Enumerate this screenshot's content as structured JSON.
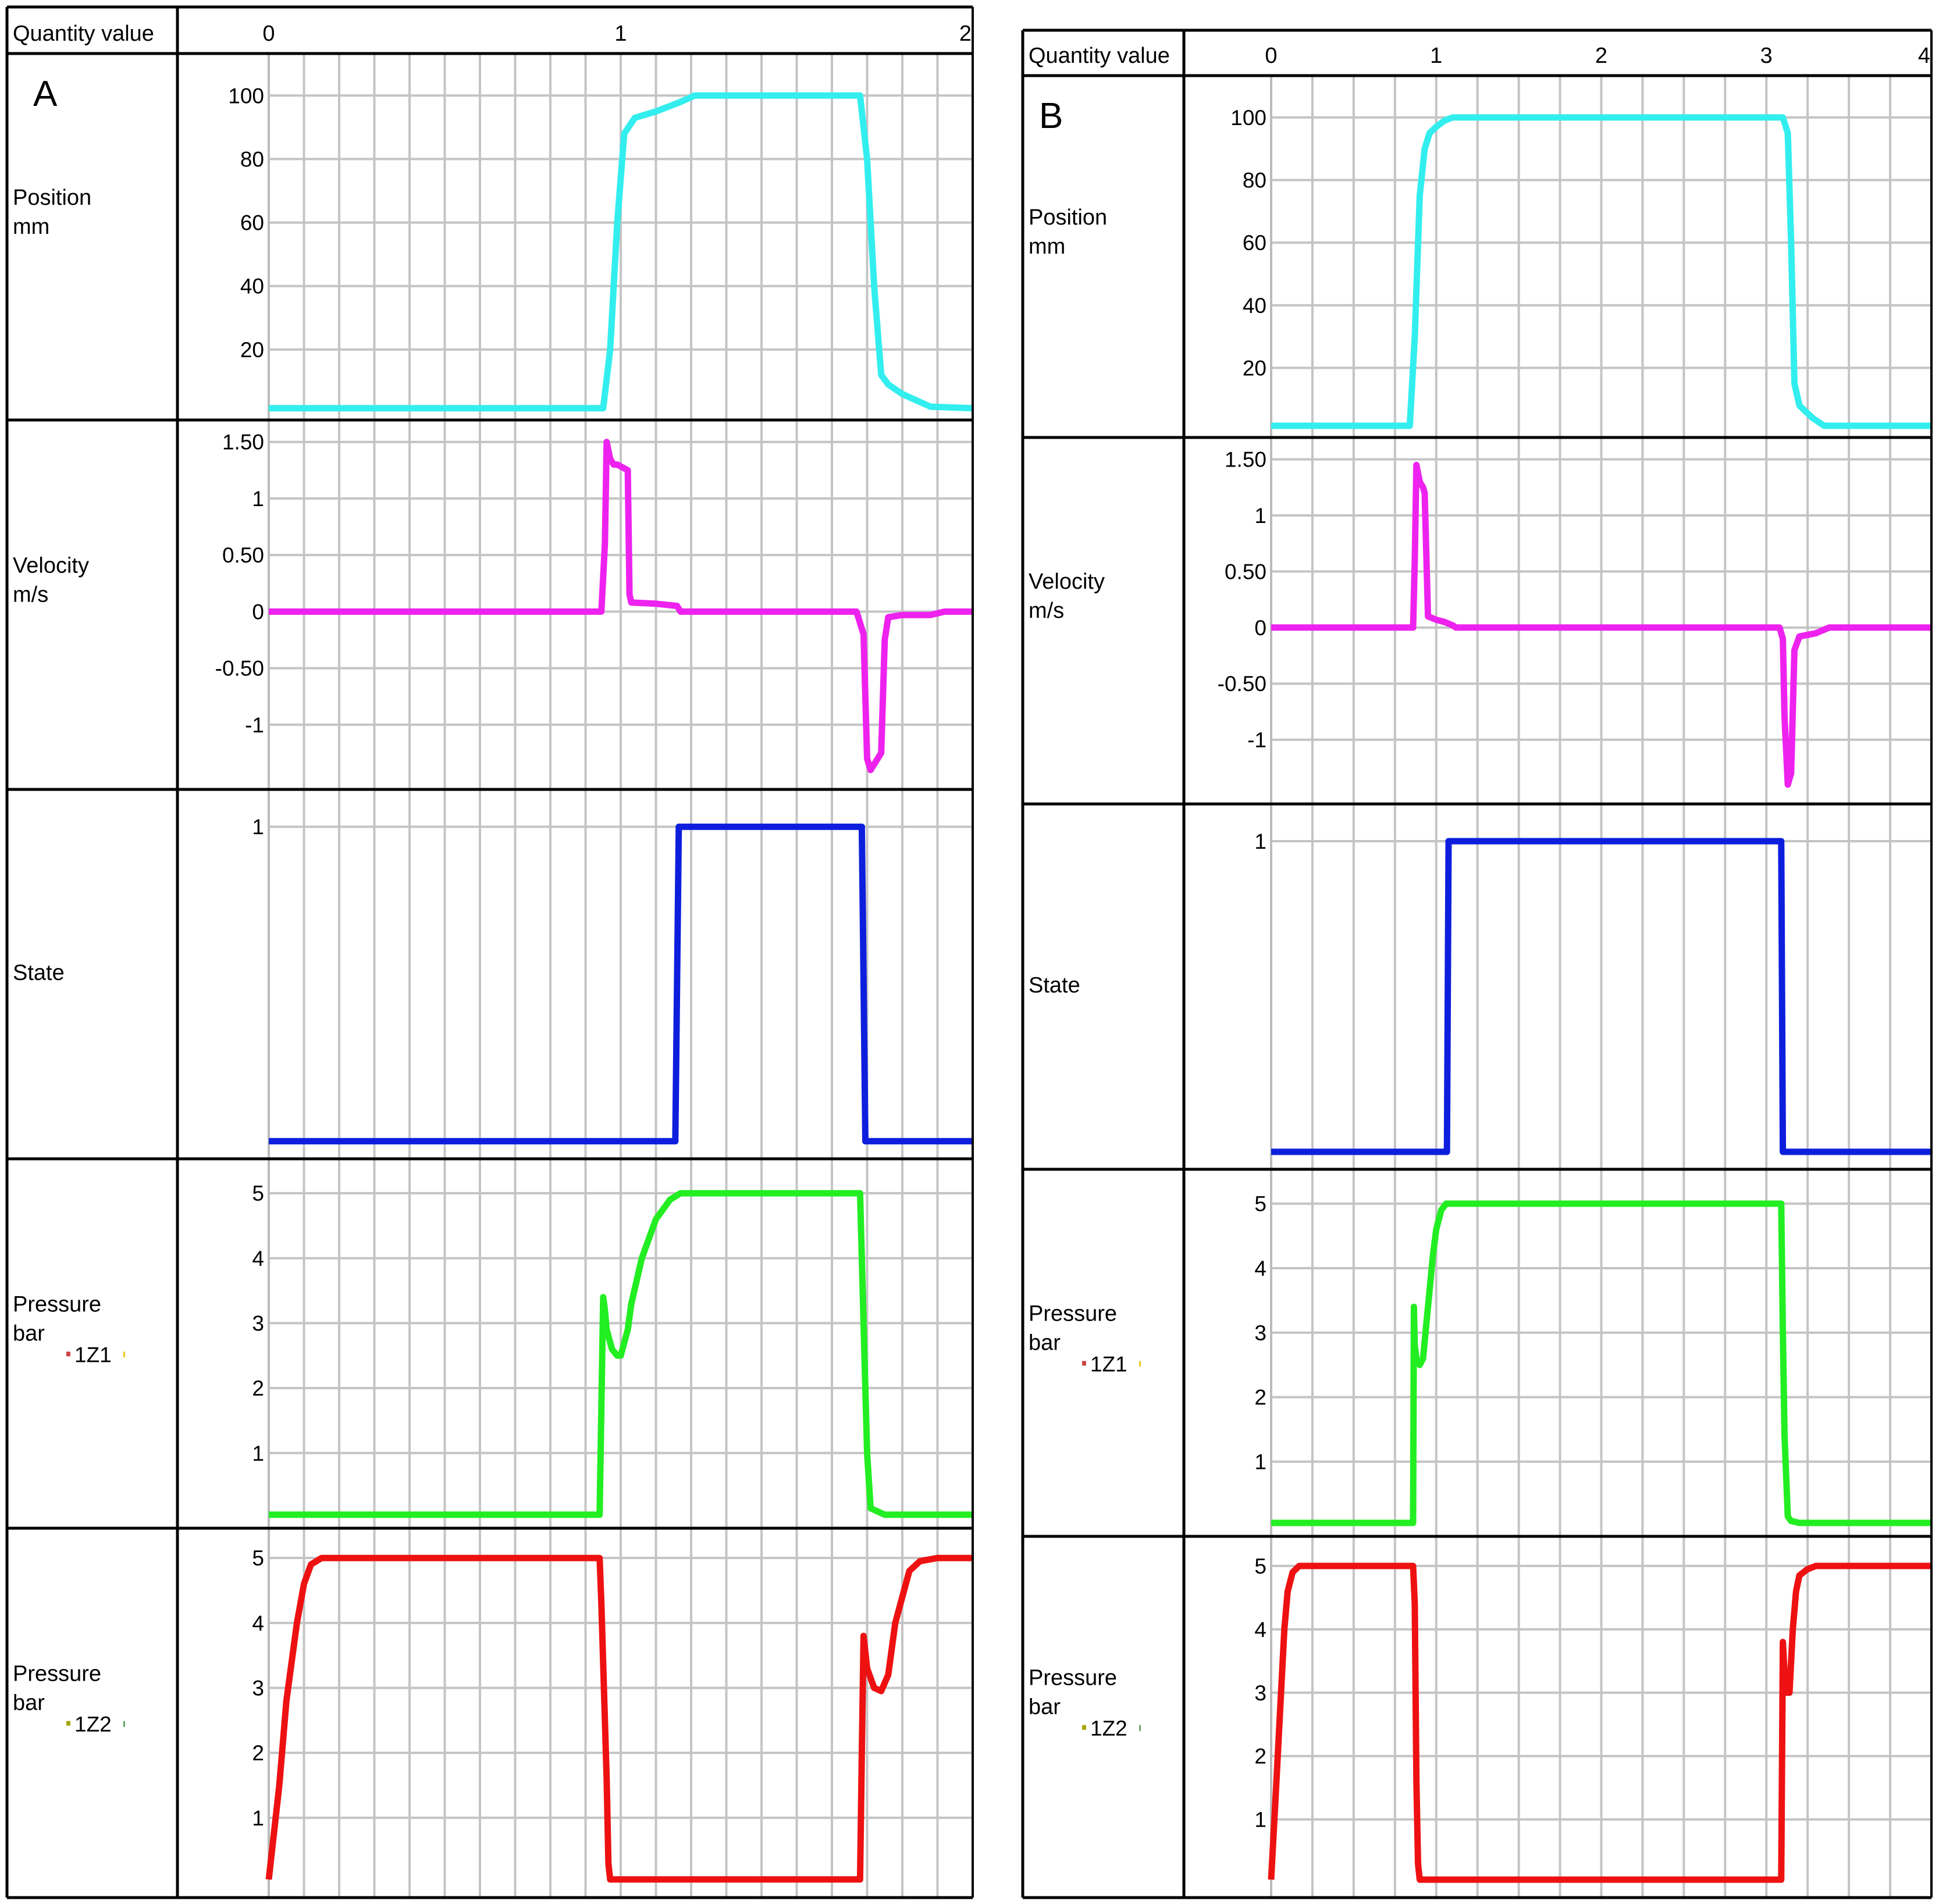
{
  "chart_data": [
    {
      "type": "line",
      "panel_letter": "A",
      "header_label": "Quantity value",
      "x_ticks": [
        "0",
        "1",
        "2"
      ],
      "xlim": [
        0,
        2
      ],
      "grid": true,
      "rows": [
        {
          "label_lines": [
            "Position",
            "mm"
          ],
          "color": "#33eeee",
          "y_ticks": [
            "100",
            "80",
            "60",
            "40",
            "20"
          ],
          "y_tick_values": [
            100,
            80,
            60,
            40,
            20
          ],
          "ylim": [
            0,
            105
          ],
          "x": [
            0,
            0.95,
            0.97,
            0.99,
            1.01,
            1.04,
            1.1,
            1.17,
            1.21,
            1.3,
            1.5,
            1.68,
            1.7,
            1.72,
            1.74,
            1.76,
            1.8,
            1.88,
            2.0
          ],
          "y": [
            1.5,
            1.5,
            20,
            60,
            88,
            93,
            95,
            98,
            100,
            100,
            100,
            100,
            80,
            40,
            12,
            9,
            6,
            2,
            1.5
          ]
        },
        {
          "label_lines": [
            "Velocity",
            "m/s"
          ],
          "color": "#ee22ee",
          "y_ticks": [
            "1.50",
            "1",
            "0.50",
            "0",
            "-0.50",
            "-1"
          ],
          "y_tick_values": [
            1.5,
            1,
            0.5,
            0,
            -0.5,
            -1
          ],
          "ylim": [
            -1.5,
            1.55
          ],
          "x": [
            0,
            0.945,
            0.955,
            0.96,
            0.97,
            0.98,
            0.99,
            1.02,
            1.025,
            1.03,
            1.1,
            1.16,
            1.17,
            1.2,
            1.67,
            1.69,
            1.7,
            1.71,
            1.73,
            1.74,
            1.75,
            1.76,
            1.8,
            1.88,
            1.92,
            2.0
          ],
          "y": [
            0,
            0,
            0.6,
            1.5,
            1.35,
            1.3,
            1.3,
            1.25,
            0.15,
            0.08,
            0.07,
            0.05,
            0,
            0,
            0,
            -0.2,
            -1.3,
            -1.4,
            -1.3,
            -1.25,
            -0.25,
            -0.05,
            -0.03,
            -0.03,
            0,
            0
          ]
        },
        {
          "label_lines": [
            "State"
          ],
          "color": "#0d1fdd",
          "y_ticks": [
            "1"
          ],
          "y_tick_values": [
            1
          ],
          "ylim": [
            -0.03,
            1.03
          ],
          "x": [
            0,
            1.155,
            1.165,
            1.685,
            1.695,
            2.0
          ],
          "y": [
            0,
            0,
            1,
            1,
            0,
            0
          ]
        },
        {
          "label_lines": [
            "Pressure",
            "bar"
          ],
          "tag": "1Z1",
          "color": "#22ee22",
          "y_ticks": [
            "5",
            "4",
            "3",
            "2",
            "1"
          ],
          "y_tick_values": [
            5,
            4,
            3,
            2,
            1
          ],
          "ylim": [
            -0.05,
            5.1
          ],
          "x": [
            0,
            0.94,
            0.95,
            0.955,
            0.96,
            0.975,
            0.99,
            1.0,
            1.02,
            1.03,
            1.06,
            1.1,
            1.14,
            1.17,
            1.2,
            1.5,
            1.68,
            1.69,
            1.7,
            1.71,
            1.75,
            2.0
          ],
          "y": [
            0.05,
            0.05,
            3.4,
            3.2,
            2.9,
            2.6,
            2.5,
            2.5,
            2.9,
            3.3,
            4.0,
            4.6,
            4.9,
            5.0,
            5.0,
            5.0,
            5.0,
            3.0,
            1.0,
            0.15,
            0.05,
            0.05
          ],
          "tag_colors": [
            "#cc4444",
            "#eecc22"
          ]
        },
        {
          "label_lines": [
            "Pressure",
            "bar"
          ],
          "tag": "1Z2",
          "color": "#ee1111",
          "y_ticks": [
            "5",
            "4",
            "3",
            "2",
            "1"
          ],
          "y_tick_values": [
            5,
            4,
            3,
            2,
            1
          ],
          "ylim": [
            -0.05,
            5.1
          ],
          "x": [
            0,
            0.03,
            0.05,
            0.08,
            0.1,
            0.12,
            0.15,
            0.2,
            0.4,
            0.94,
            0.945,
            0.96,
            0.965,
            0.97,
            1.0,
            1.5,
            1.68,
            1.685,
            1.69,
            1.7,
            1.72,
            1.74,
            1.76,
            1.78,
            1.82,
            1.85,
            1.9,
            2.0
          ],
          "y": [
            0.05,
            1.5,
            2.8,
            4.0,
            4.6,
            4.9,
            5.0,
            5.0,
            5.0,
            5.0,
            4.3,
            1.6,
            0.3,
            0.05,
            0.05,
            0.05,
            0.05,
            2.0,
            3.8,
            3.3,
            3.0,
            2.95,
            3.2,
            4.0,
            4.8,
            4.95,
            5.0,
            5.0
          ],
          "tag_colors": [
            "#a5a500",
            "#66aa66"
          ]
        }
      ]
    },
    {
      "type": "line",
      "panel_letter": "B",
      "header_label": "Quantity value",
      "x_ticks": [
        "0",
        "1",
        "2",
        "3",
        "4"
      ],
      "xlim": [
        0,
        4
      ],
      "grid": true,
      "rows": [
        {
          "label_lines": [
            "Position",
            "mm"
          ],
          "color": "#33eeee",
          "y_ticks": [
            "100",
            "80",
            "60",
            "40",
            "20"
          ],
          "y_tick_values": [
            100,
            80,
            60,
            40,
            20
          ],
          "ylim": [
            0,
            105
          ],
          "x": [
            0,
            0.84,
            0.87,
            0.9,
            0.93,
            0.96,
            1.0,
            1.05,
            1.1,
            2.0,
            3.1,
            3.13,
            3.15,
            3.17,
            3.2,
            3.28,
            3.35,
            4.0
          ],
          "y": [
            1.5,
            1.5,
            30,
            75,
            90,
            95,
            97,
            99,
            100,
            100,
            100,
            95,
            60,
            15,
            8,
            4,
            1.5,
            1.5
          ]
        },
        {
          "label_lines": [
            "Velocity",
            "m/s"
          ],
          "color": "#ee22ee",
          "y_ticks": [
            "1.50",
            "1",
            "0.50",
            "0",
            "-0.50",
            "-1"
          ],
          "y_tick_values": [
            1.5,
            1,
            0.5,
            0,
            -0.5,
            -1
          ],
          "ylim": [
            -1.5,
            1.55
          ],
          "x": [
            0,
            0.86,
            0.87,
            0.88,
            0.9,
            0.92,
            0.93,
            0.95,
            1.0,
            1.05,
            1.1,
            1.12,
            3.08,
            3.1,
            3.11,
            3.13,
            3.15,
            3.17,
            3.2,
            3.3,
            3.38,
            4.0
          ],
          "y": [
            0,
            0,
            0.6,
            1.45,
            1.3,
            1.25,
            1.2,
            0.1,
            0.07,
            0.05,
            0.02,
            0,
            0,
            -0.1,
            -0.8,
            -1.4,
            -1.3,
            -0.2,
            -0.08,
            -0.05,
            0,
            0
          ]
        },
        {
          "label_lines": [
            "State"
          ],
          "color": "#0d1fdd",
          "y_ticks": [
            "1"
          ],
          "y_tick_values": [
            1
          ],
          "ylim": [
            -0.03,
            1.03
          ],
          "x": [
            0,
            1.065,
            1.075,
            3.09,
            3.1,
            4.0
          ],
          "y": [
            0,
            0,
            1,
            1,
            0,
            0
          ]
        },
        {
          "label_lines": [
            "Pressure",
            "bar"
          ],
          "tag": "1Z1",
          "color": "#22ee22",
          "y_ticks": [
            "5",
            "4",
            "3",
            "2",
            "1"
          ],
          "y_tick_values": [
            5,
            4,
            3,
            2,
            1
          ],
          "ylim": [
            -0.05,
            5.1
          ],
          "x": [
            0,
            0.86,
            0.865,
            0.87,
            0.88,
            0.9,
            0.92,
            0.95,
            0.98,
            1.0,
            1.03,
            1.06,
            1.1,
            1.2,
            3.09,
            3.1,
            3.11,
            3.13,
            3.15,
            3.2,
            4.0
          ],
          "y": [
            0.05,
            0.05,
            3.4,
            2.8,
            2.6,
            2.5,
            2.6,
            3.4,
            4.2,
            4.6,
            4.9,
            5.0,
            5.0,
            5.0,
            5.0,
            3.0,
            1.4,
            0.15,
            0.08,
            0.05,
            0.05
          ],
          "tag_colors": [
            "#cc4444",
            "#eecc22"
          ]
        },
        {
          "label_lines": [
            "Pressure",
            "bar"
          ],
          "tag": "1Z2",
          "color": "#ee1111",
          "y_ticks": [
            "5",
            "4",
            "3",
            "2",
            "1"
          ],
          "y_tick_values": [
            5,
            4,
            3,
            2,
            1
          ],
          "ylim": [
            -0.05,
            5.1
          ],
          "x": [
            0,
            0.03,
            0.06,
            0.08,
            0.1,
            0.13,
            0.17,
            0.25,
            0.86,
            0.87,
            0.88,
            0.89,
            0.9,
            1.0,
            2.0,
            3.09,
            3.1,
            3.11,
            3.12,
            3.14,
            3.16,
            3.18,
            3.2,
            3.25,
            3.3,
            3.4,
            4.0
          ],
          "y": [
            0.05,
            1.5,
            3.0,
            4.0,
            4.6,
            4.9,
            5.0,
            5.0,
            5.0,
            4.4,
            1.6,
            0.3,
            0.05,
            0.05,
            0.05,
            0.05,
            3.8,
            3.3,
            3.0,
            3.0,
            4.0,
            4.6,
            4.85,
            4.95,
            5.0,
            5.0,
            5.0
          ],
          "tag_colors": [
            "#a5a500",
            "#66aa66"
          ]
        }
      ]
    }
  ]
}
